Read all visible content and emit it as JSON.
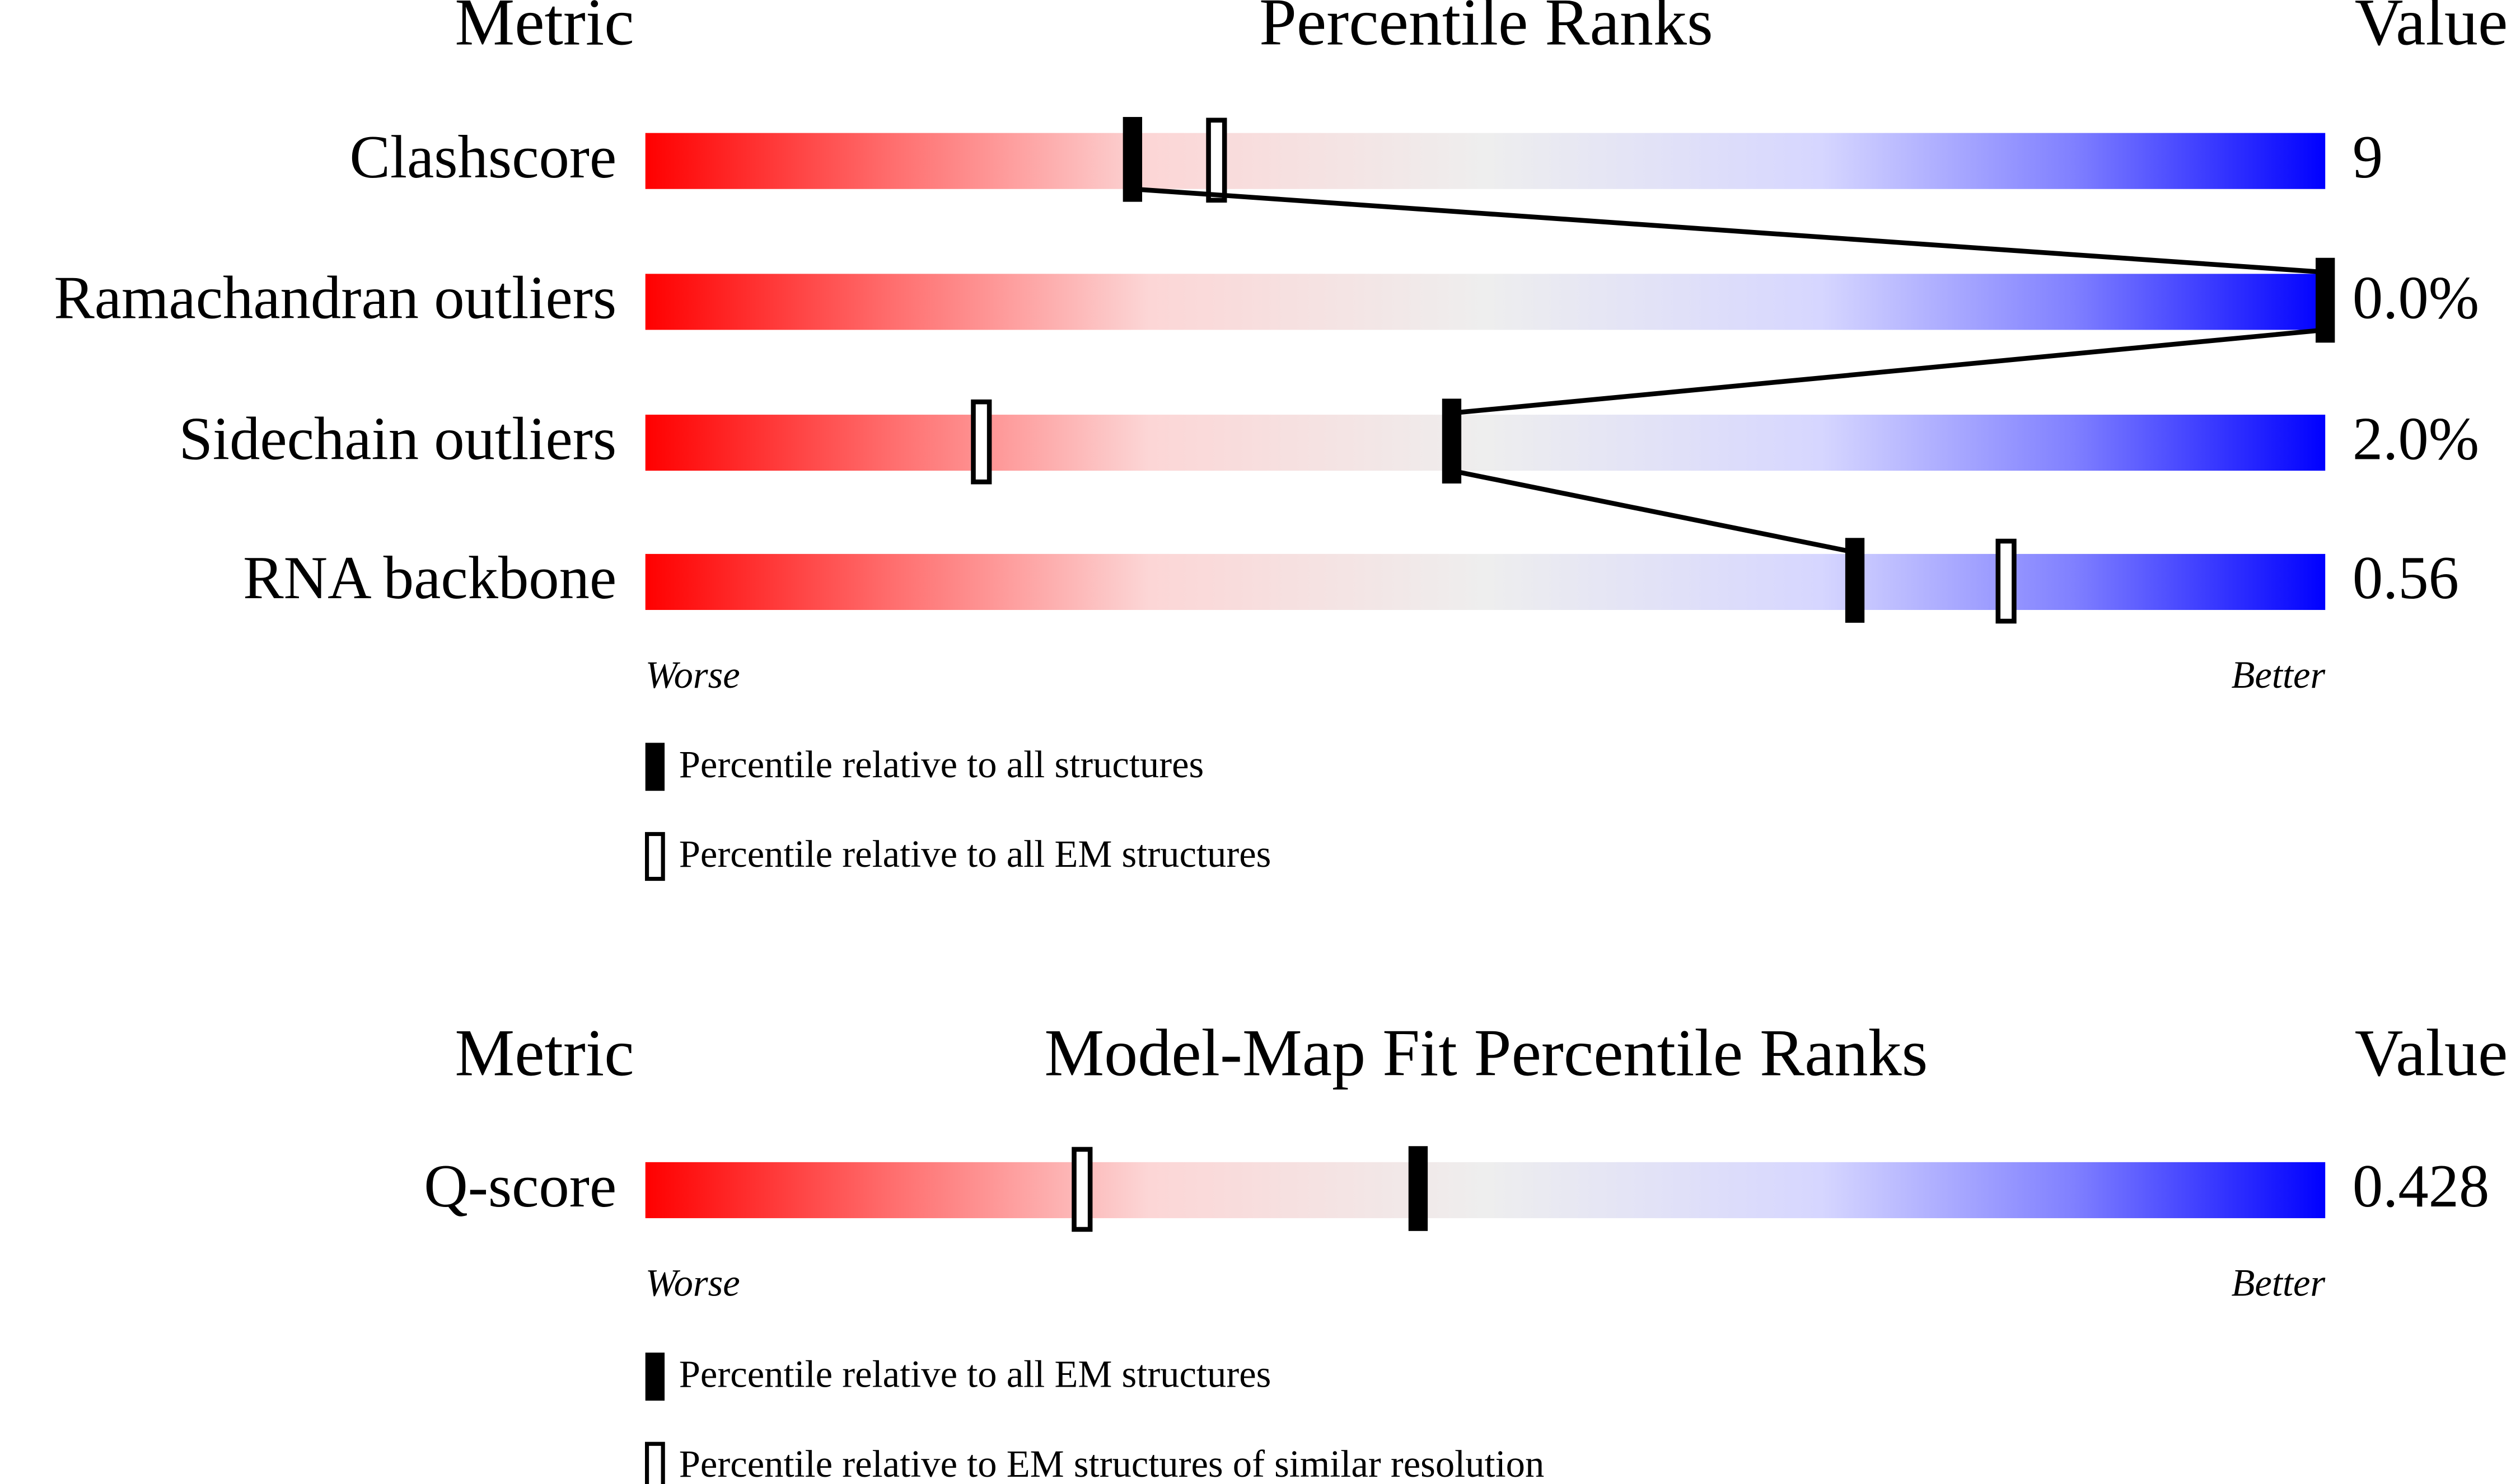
{
  "panels": [
    {
      "header": {
        "metric": "Metric",
        "title": "Percentile Ranks",
        "value": "Value"
      },
      "rows": [
        {
          "metric": "Clashscore",
          "value": "9",
          "percentile_all": 29,
          "percentile_other": 34
        },
        {
          "metric": "Ramachandran outliers",
          "value": "0.0%",
          "percentile_all": 100,
          "percentile_other": null
        },
        {
          "metric": "Sidechain outliers",
          "value": "2.0%",
          "percentile_all": 48,
          "percentile_other": 20
        },
        {
          "metric": "RNA backbone",
          "value": "0.56",
          "percentile_all": 72,
          "percentile_other": 81
        }
      ],
      "worse": "Worse",
      "better": "Better",
      "legend": [
        "Percentile relative to all structures",
        "Percentile relative to all EM structures"
      ]
    },
    {
      "header": {
        "metric": "Metric",
        "title": "Model-Map Fit Percentile Ranks",
        "value": "Value"
      },
      "rows": [
        {
          "metric": "Q-score",
          "value": "0.428",
          "percentile_all": 46,
          "percentile_other": 26
        }
      ],
      "worse": "Worse",
      "better": "Better",
      "legend": [
        "Percentile relative to all EM structures",
        "Percentile relative to EM structures of similar resolution"
      ]
    }
  ]
}
